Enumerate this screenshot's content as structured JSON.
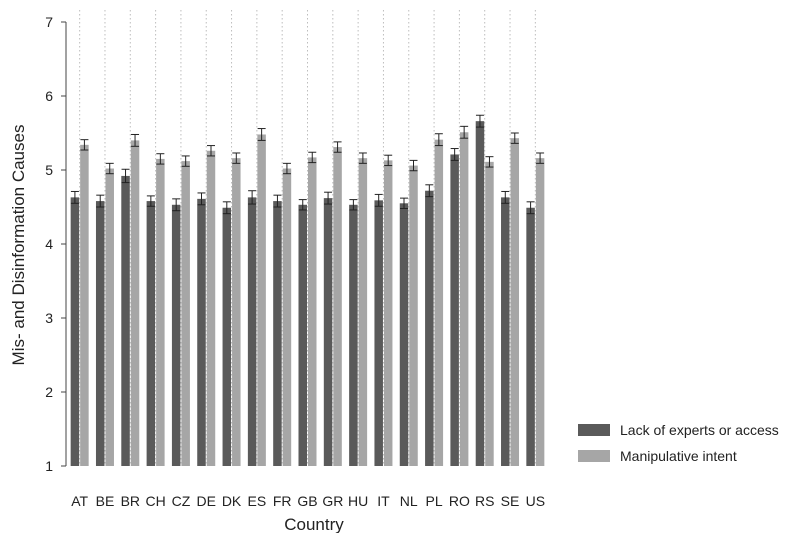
{
  "chart_data": {
    "type": "bar",
    "title": "",
    "xlabel": "Country",
    "ylabel": "Mis- and Disinformation Causes",
    "ylim": [
      1,
      7
    ],
    "yticks": [
      1,
      2,
      3,
      4,
      5,
      6,
      7
    ],
    "grid": "vertical dotted lines at each category",
    "legend_position": "right",
    "error_bars": true,
    "categories": [
      "AT",
      "BE",
      "BR",
      "CH",
      "CZ",
      "DE",
      "DK",
      "ES",
      "FR",
      "GB",
      "GR",
      "HU",
      "IT",
      "NL",
      "PL",
      "RO",
      "RS",
      "SE",
      "US"
    ],
    "series": [
      {
        "name": "Lack of experts or access",
        "color": "#5a5a5a",
        "values": [
          4.63,
          4.58,
          4.92,
          4.58,
          4.53,
          4.61,
          4.49,
          4.63,
          4.58,
          4.53,
          4.62,
          4.53,
          4.59,
          4.55,
          4.72,
          5.21,
          5.66,
          4.63,
          4.49
        ],
        "error": [
          0.08,
          0.08,
          0.09,
          0.07,
          0.08,
          0.08,
          0.08,
          0.09,
          0.08,
          0.07,
          0.08,
          0.07,
          0.08,
          0.07,
          0.08,
          0.08,
          0.08,
          0.08,
          0.08
        ]
      },
      {
        "name": "Manipulative intent",
        "color": "#a6a6a6",
        "values": [
          5.34,
          5.02,
          5.4,
          5.15,
          5.12,
          5.26,
          5.16,
          5.48,
          5.02,
          5.17,
          5.31,
          5.16,
          5.13,
          5.06,
          5.41,
          5.51,
          5.11,
          5.43,
          5.16
        ],
        "error": [
          0.07,
          0.07,
          0.08,
          0.07,
          0.07,
          0.07,
          0.07,
          0.08,
          0.07,
          0.07,
          0.07,
          0.07,
          0.07,
          0.07,
          0.08,
          0.08,
          0.07,
          0.07,
          0.07
        ]
      }
    ]
  }
}
